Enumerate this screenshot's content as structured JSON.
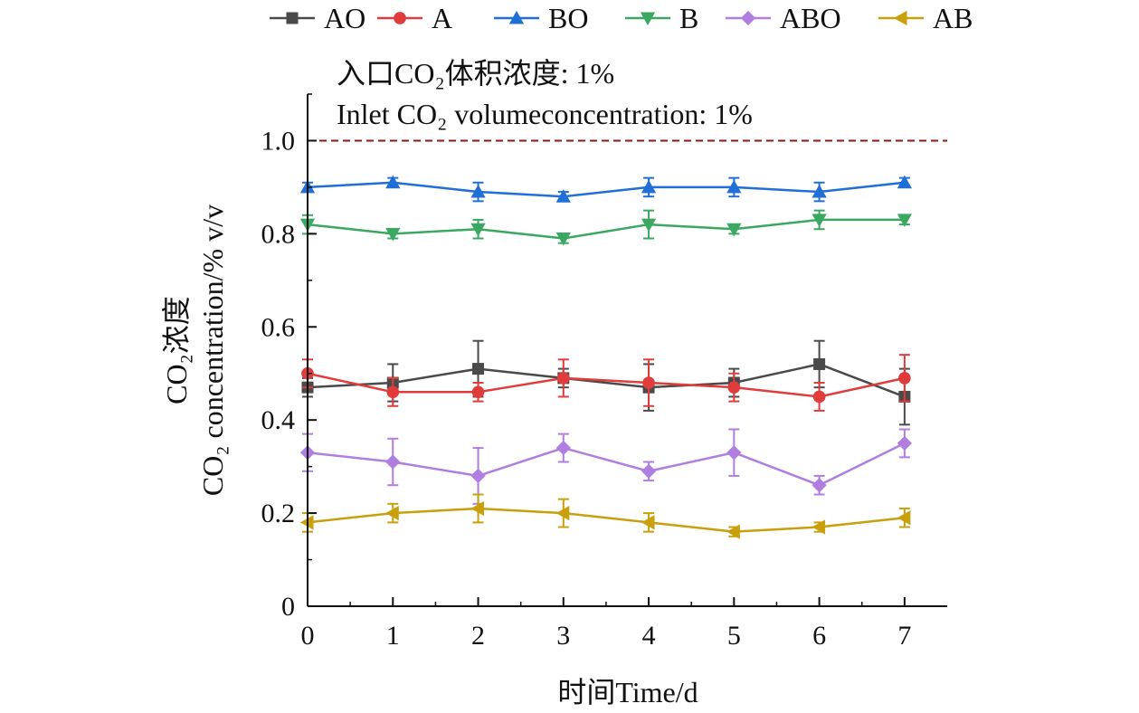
{
  "chart_data": {
    "type": "line",
    "x": [
      0,
      1,
      2,
      3,
      4,
      5,
      6,
      7
    ],
    "xlim": [
      0,
      7.5
    ],
    "ylim": [
      0,
      1.1
    ],
    "xticks": [
      "0",
      "1",
      "2",
      "3",
      "4",
      "5",
      "6",
      "7"
    ],
    "yticks": [
      "0",
      "0.2",
      "0.4",
      "0.6",
      "0.8",
      "1.0"
    ],
    "xlabel": "时间Time/d",
    "ylabel_zh": "CO₂浓度",
    "ylabel_en": "CO₂ concentration/% v/v",
    "annotation_zh": "入口CO₂体积浓度: 1%",
    "annotation_en": "Inlet CO₂ volumeconcentration: 1%",
    "reference_line": {
      "y": 1.0,
      "color": "#8b1a1a",
      "style": "dashed"
    },
    "legend_position": "top",
    "grid": false,
    "series": [
      {
        "name": "AO",
        "marker": "square",
        "color": "#4a4a4a",
        "values": [
          0.47,
          0.48,
          0.51,
          0.49,
          0.47,
          0.48,
          0.52,
          0.45
        ],
        "errors": [
          0.02,
          0.04,
          0.06,
          0.02,
          0.05,
          0.03,
          0.05,
          0.06
        ]
      },
      {
        "name": "A",
        "marker": "circle",
        "color": "#e03c3c",
        "values": [
          0.5,
          0.46,
          0.46,
          0.49,
          0.48,
          0.47,
          0.45,
          0.49
        ],
        "errors": [
          0.03,
          0.03,
          0.02,
          0.04,
          0.05,
          0.03,
          0.03,
          0.05
        ]
      },
      {
        "name": "BO",
        "marker": "triangle-up",
        "color": "#1f6fd6",
        "values": [
          0.9,
          0.91,
          0.89,
          0.88,
          0.9,
          0.9,
          0.89,
          0.91
        ],
        "errors": [
          0.01,
          0.01,
          0.02,
          0.01,
          0.02,
          0.02,
          0.02,
          0.01
        ]
      },
      {
        "name": "B",
        "marker": "triangle-down",
        "color": "#3aa860",
        "values": [
          0.82,
          0.8,
          0.81,
          0.79,
          0.82,
          0.81,
          0.83,
          0.83
        ],
        "errors": [
          0.02,
          0.01,
          0.02,
          0.01,
          0.03,
          0.01,
          0.02,
          0.01
        ]
      },
      {
        "name": "ABO",
        "marker": "diamond",
        "color": "#b07ee0",
        "values": [
          0.33,
          0.31,
          0.28,
          0.34,
          0.29,
          0.33,
          0.26,
          0.35
        ],
        "errors": [
          0.04,
          0.05,
          0.06,
          0.03,
          0.02,
          0.05,
          0.02,
          0.03
        ]
      },
      {
        "name": "AB",
        "marker": "triangle-left",
        "color": "#c9a00c",
        "values": [
          0.18,
          0.2,
          0.21,
          0.2,
          0.18,
          0.16,
          0.17,
          0.19
        ],
        "errors": [
          0.02,
          0.02,
          0.03,
          0.03,
          0.02,
          0.01,
          0.01,
          0.02
        ]
      }
    ]
  }
}
